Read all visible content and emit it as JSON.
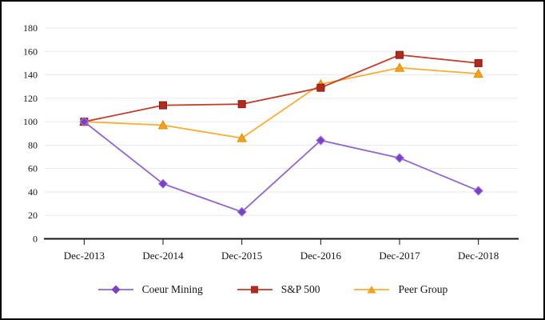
{
  "chart_data": {
    "type": "line",
    "categories": [
      "Dec-2013",
      "Dec-2014",
      "Dec-2015",
      "Dec-2016",
      "Dec-2017",
      "Dec-2018"
    ],
    "series": [
      {
        "name": "Coeur Mining",
        "marker": "diamond",
        "color": "#9164D0",
        "marker_color": "#7B3FC9",
        "marker_stroke": "#A488DF",
        "values": [
          100,
          47,
          23,
          84,
          69,
          41
        ]
      },
      {
        "name": "S&P 500",
        "marker": "square",
        "color": "#C13A2A",
        "marker_color": "#B2291D",
        "marker_stroke": "#8C1C12",
        "values": [
          100,
          114,
          115,
          129,
          157,
          150
        ]
      },
      {
        "name": "Peer Group",
        "marker": "triangle",
        "color": "#FBAC32",
        "marker_color": "#F9A019",
        "marker_stroke": "#DE8F04",
        "values": [
          100,
          97,
          86,
          132,
          146,
          141
        ]
      }
    ],
    "ylim": [
      0,
      180
    ],
    "yticks": [
      0,
      20,
      40,
      60,
      80,
      100,
      120,
      140,
      160,
      180
    ],
    "grid": "horizontal",
    "legend_position": "bottom",
    "grid_color": "#EAEAEA",
    "axis_color": "#141414",
    "text_color": "#141414"
  }
}
